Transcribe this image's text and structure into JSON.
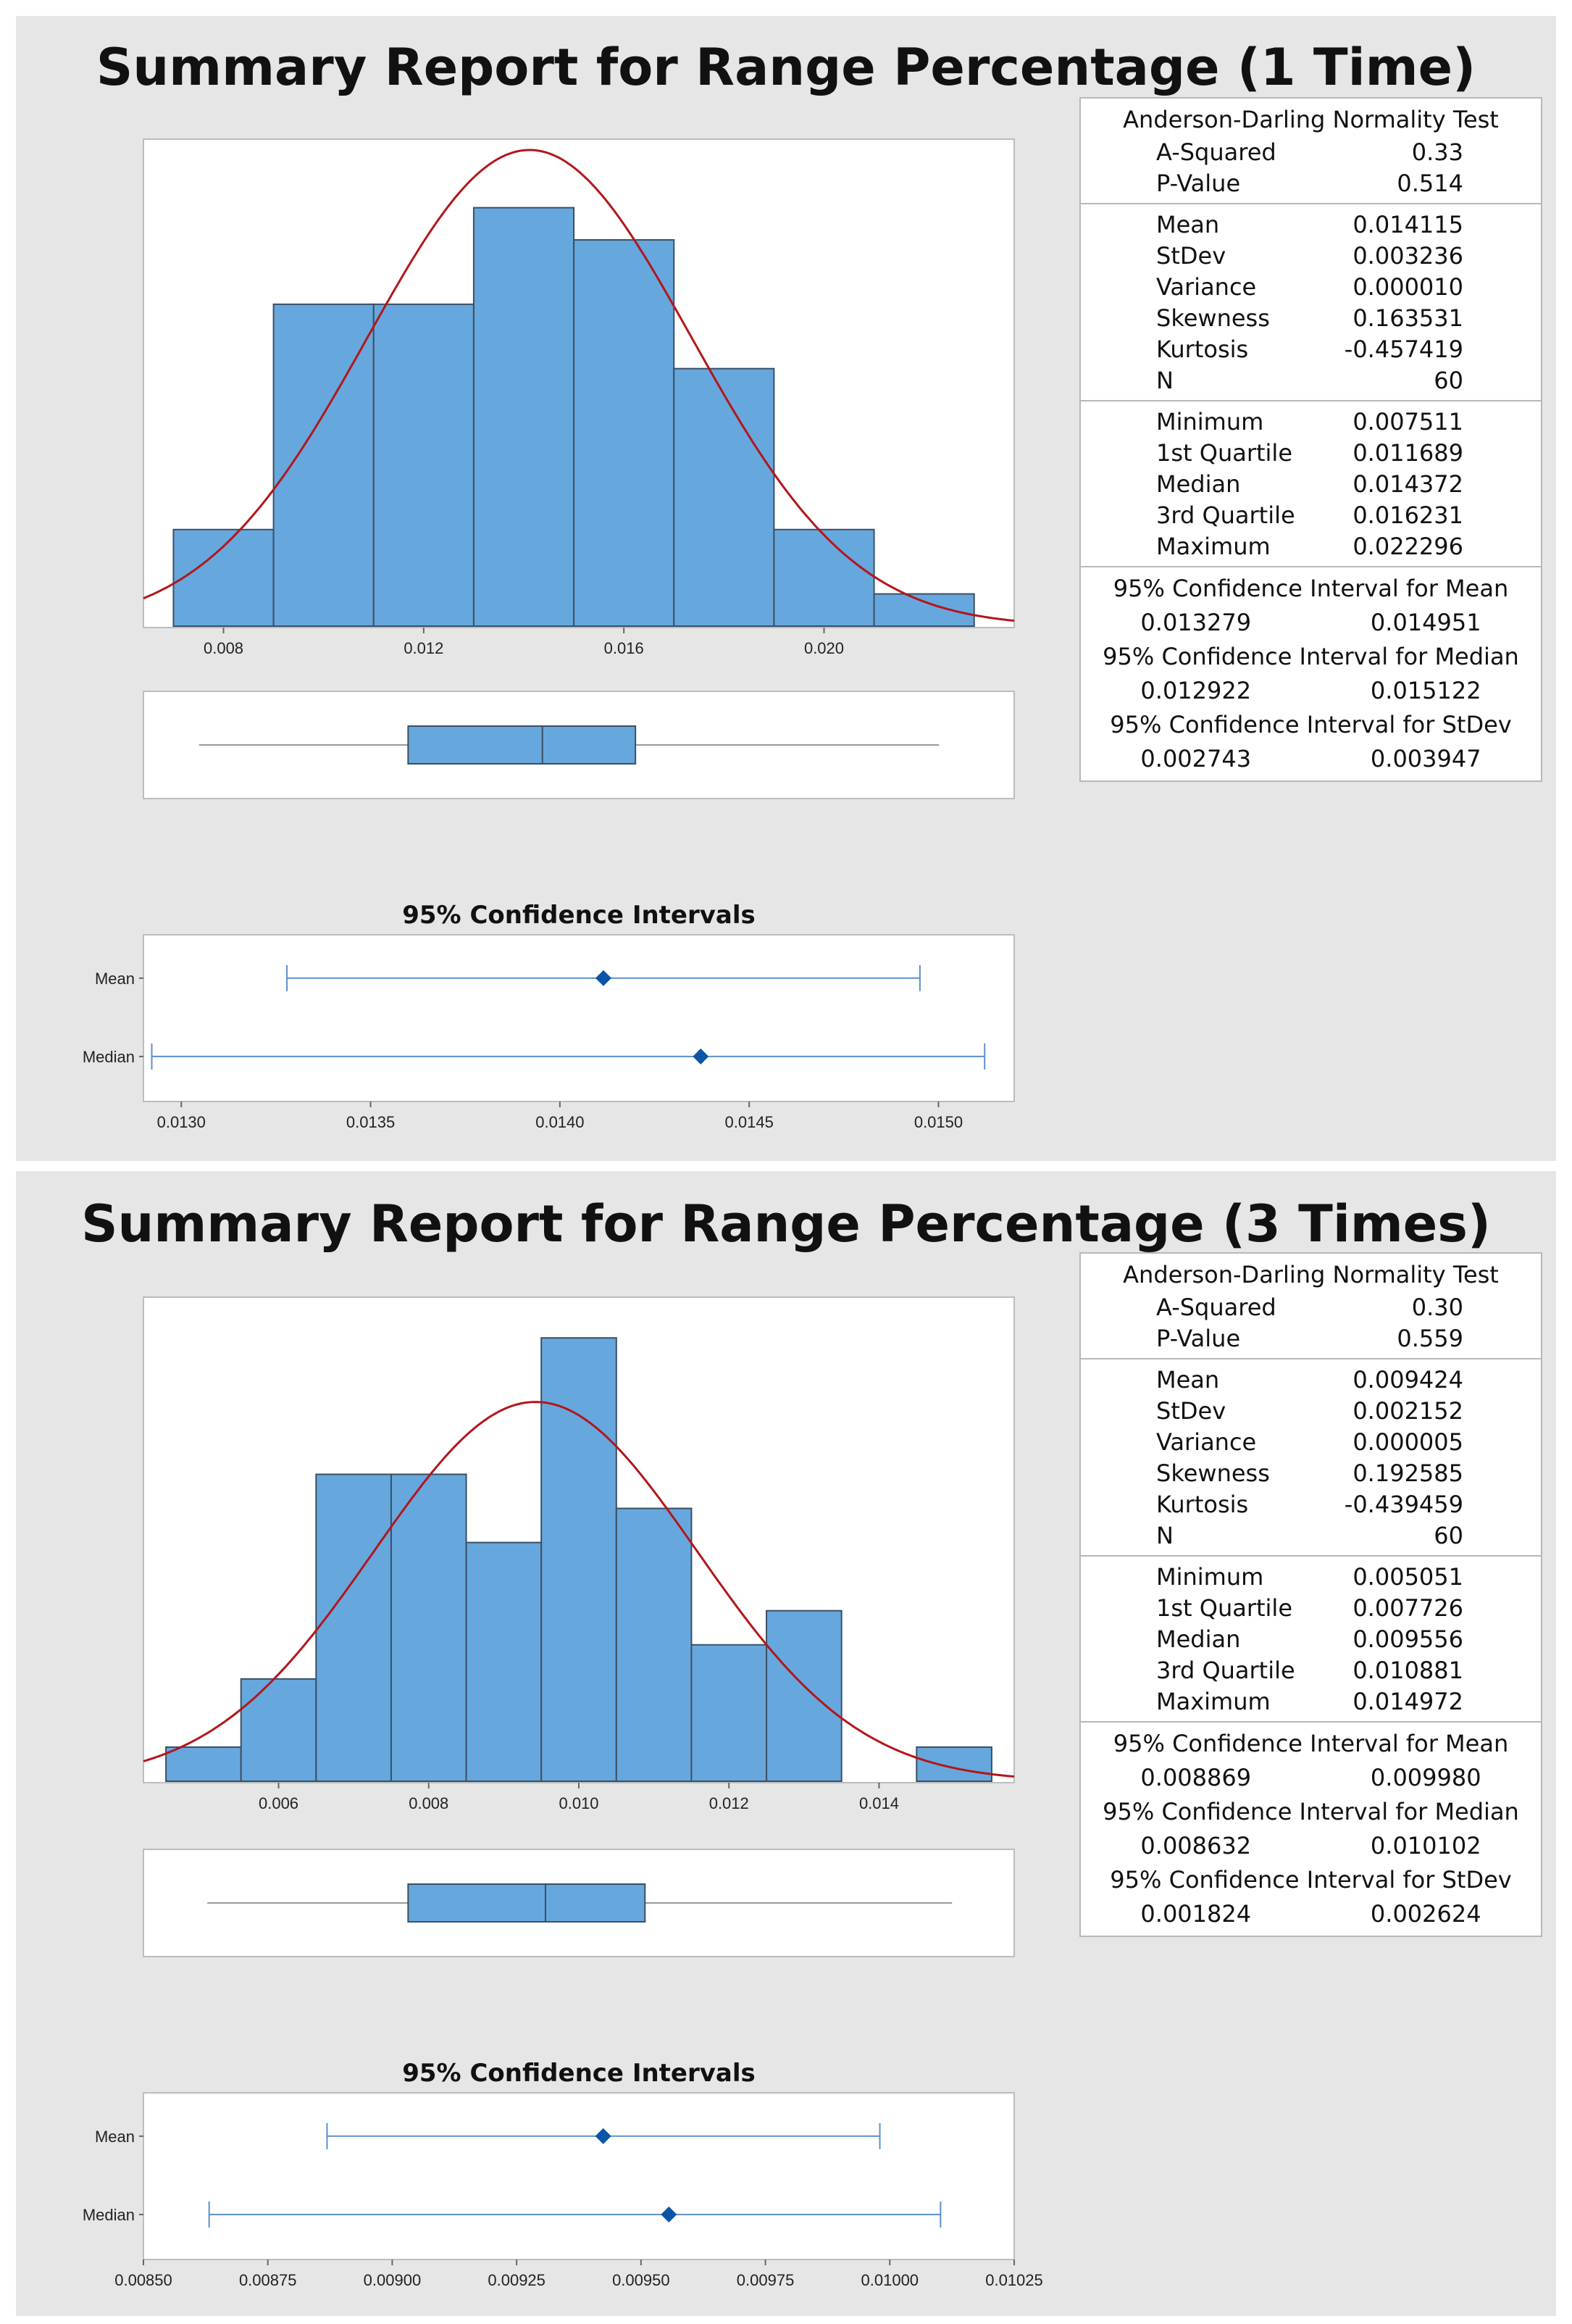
{
  "reports": [
    {
      "title": "Summary Report for Range Percentage (1 Time)",
      "stats": {
        "normality": {
          "heading": "Anderson-Darling Normality Test",
          "rows": [
            {
              "label": "A-Squared",
              "value": "0.33"
            },
            {
              "label": "P-Value",
              "value": "0.514"
            }
          ]
        },
        "moments": [
          {
            "label": "Mean",
            "value": "0.014115"
          },
          {
            "label": "StDev",
            "value": "0.003236"
          },
          {
            "label": "Variance",
            "value": "0.000010"
          },
          {
            "label": "Skewness",
            "value": "0.163531"
          },
          {
            "label": "Kurtosis",
            "value": "-0.457419"
          },
          {
            "label": "N",
            "value": "60"
          }
        ],
        "quartiles": [
          {
            "label": "Minimum",
            "value": "0.007511"
          },
          {
            "label": "1st Quartile",
            "value": "0.011689"
          },
          {
            "label": "Median",
            "value": "0.014372"
          },
          {
            "label": "3rd Quartile",
            "value": "0.016231"
          },
          {
            "label": "Maximum",
            "value": "0.022296"
          }
        ],
        "intervals": [
          {
            "heading": "95% Confidence Interval for Mean",
            "low": "0.013279",
            "high": "0.014951"
          },
          {
            "heading": "95% Confidence Interval for Median",
            "low": "0.012922",
            "high": "0.015122"
          },
          {
            "heading": "95% Confidence Interval for StDev",
            "low": "0.002743",
            "high": "0.003947"
          }
        ]
      }
    },
    {
      "title": "Summary Report for Range Percentage (3 Times)",
      "stats": {
        "normality": {
          "heading": "Anderson-Darling Normality Test",
          "rows": [
            {
              "label": "A-Squared",
              "value": "0.30"
            },
            {
              "label": "P-Value",
              "value": "0.559"
            }
          ]
        },
        "moments": [
          {
            "label": "Mean",
            "value": "0.009424"
          },
          {
            "label": "StDev",
            "value": "0.002152"
          },
          {
            "label": "Variance",
            "value": "0.000005"
          },
          {
            "label": "Skewness",
            "value": "0.192585"
          },
          {
            "label": "Kurtosis",
            "value": "-0.439459"
          },
          {
            "label": "N",
            "value": "60"
          }
        ],
        "quartiles": [
          {
            "label": "Minimum",
            "value": "0.005051"
          },
          {
            "label": "1st Quartile",
            "value": "0.007726"
          },
          {
            "label": "Median",
            "value": "0.009556"
          },
          {
            "label": "3rd Quartile",
            "value": "0.010881"
          },
          {
            "label": "Maximum",
            "value": "0.014972"
          }
        ],
        "intervals": [
          {
            "heading": "95% Confidence Interval for Mean",
            "low": "0.008869",
            "high": "0.009980"
          },
          {
            "heading": "95% Confidence Interval for Median",
            "low": "0.008632",
            "high": "0.010102"
          },
          {
            "heading": "95% Confidence Interval for StDev",
            "low": "0.001824",
            "high": "0.002624"
          }
        ]
      }
    }
  ],
  "chart_data": [
    {
      "type": "bar",
      "title": "Summary Report for Range Percentage (1 Time) — Histogram",
      "bin_edges": [
        0.007,
        0.009,
        0.011,
        0.013,
        0.015,
        0.017,
        0.019,
        0.021,
        0.023
      ],
      "counts": [
        3,
        10,
        10,
        13,
        12,
        8,
        3,
        1
      ],
      "x_ticks": [
        0.008,
        0.012,
        0.016,
        0.02
      ],
      "x_tick_labels": [
        "0.008",
        "0.012",
        "0.016",
        "0.020"
      ],
      "xlim": [
        0.0064,
        0.0238
      ],
      "ylim": [
        0,
        14.5
      ],
      "normal_fit": {
        "mean": 0.014115,
        "stdev": 0.003236,
        "n": 60
      },
      "boxplot": {
        "whisker_low": 0.007511,
        "q1": 0.011689,
        "median": 0.014372,
        "q3": 0.016231,
        "whisker_high": 0.022296
      }
    },
    {
      "type": "scatter",
      "title": "95% Confidence Intervals",
      "rows": [
        {
          "name": "Mean",
          "estimate": 0.014115,
          "low": 0.013279,
          "high": 0.014951
        },
        {
          "name": "Median",
          "estimate": 0.014372,
          "low": 0.012922,
          "high": 0.015122
        }
      ],
      "x_ticks": [
        0.013,
        0.0135,
        0.014,
        0.0145,
        0.015
      ],
      "x_tick_labels": [
        "0.0130",
        "0.0135",
        "0.0140",
        "0.0145",
        "0.0150"
      ],
      "xlim": [
        0.0129,
        0.0152
      ]
    },
    {
      "type": "bar",
      "title": "Summary Report for Range Percentage (3 Times) — Histogram",
      "bin_edges": [
        0.0045,
        0.0055,
        0.0065,
        0.0075,
        0.0085,
        0.0095,
        0.0105,
        0.0115,
        0.0125,
        0.0135,
        0.0145,
        0.0155
      ],
      "counts": [
        1,
        3,
        9,
        9,
        7,
        13,
        8,
        4,
        5,
        0,
        1
      ],
      "x_ticks": [
        0.006,
        0.008,
        0.01,
        0.012,
        0.014
      ],
      "x_tick_labels": [
        "0.006",
        "0.008",
        "0.010",
        "0.012",
        "0.014"
      ],
      "xlim": [
        0.0042,
        0.0158
      ],
      "ylim": [
        0,
        13.6
      ],
      "normal_fit": {
        "mean": 0.009424,
        "stdev": 0.002152,
        "n": 60
      },
      "boxplot": {
        "whisker_low": 0.005051,
        "q1": 0.007726,
        "median": 0.009556,
        "q3": 0.010881,
        "whisker_high": 0.014972
      }
    },
    {
      "type": "scatter",
      "title": "95% Confidence Intervals",
      "rows": [
        {
          "name": "Mean",
          "estimate": 0.009424,
          "low": 0.008869,
          "high": 0.00998
        },
        {
          "name": "Median",
          "estimate": 0.009556,
          "low": 0.008632,
          "high": 0.010102
        }
      ],
      "x_ticks": [
        0.0085,
        0.00875,
        0.009,
        0.00925,
        0.0095,
        0.00975,
        0.01,
        0.01025
      ],
      "x_tick_labels": [
        "0.00850",
        "0.00875",
        "0.00900",
        "0.00925",
        "0.00950",
        "0.00975",
        "0.01000",
        "0.01025"
      ],
      "xlim": [
        0.0085,
        0.01025
      ]
    }
  ]
}
